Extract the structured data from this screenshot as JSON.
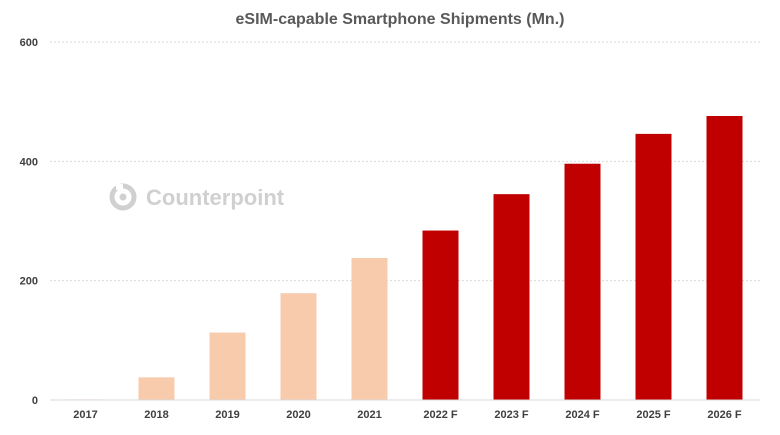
{
  "watermark": "Counterpoint",
  "chart_data": {
    "type": "bar",
    "title": "eSIM-capable Smartphone Shipments (Mn.)",
    "xlabel": "",
    "ylabel": "",
    "ylim": [
      0,
      600
    ],
    "yticks": [
      0,
      200,
      400,
      600
    ],
    "grid": true,
    "legend": "none",
    "categories": [
      "2017",
      "2018",
      "2019",
      "2020",
      "2021",
      "2022 F",
      "2023 F",
      "2024 F",
      "2025 F",
      "2026 F"
    ],
    "values": [
      1,
      38,
      113,
      179,
      238,
      284,
      345,
      396,
      446,
      476
    ],
    "colors": {
      "actual": "#f8cbad",
      "forecast": "#c00000"
    },
    "forecast_start_index": 5
  }
}
